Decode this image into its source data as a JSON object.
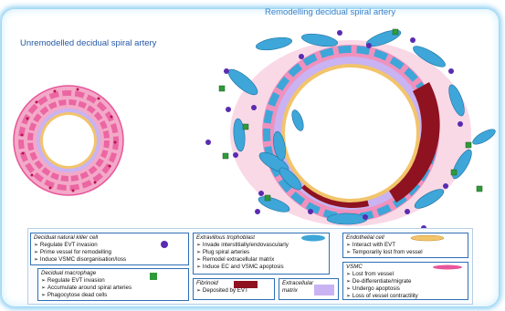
{
  "titles": {
    "remodelling": "Remodelling decidual spiral artery",
    "unremodelled": "Unremodelled decidual spiral artery"
  },
  "legend": {
    "dnk": {
      "heading": "Decidual natural killer cell",
      "items": [
        "Regulate EVT invasion",
        "Prime vessel for remodelling",
        "Induce VSMC disorganisation/loss"
      ]
    },
    "macrophage": {
      "heading": "Decidual macrophage",
      "items": [
        "Regulate EVT invasion",
        "Accumulate around spiral arteries",
        "Phagocytose dead cells"
      ]
    },
    "evt": {
      "heading": "Extravillous trophoblast",
      "items": [
        "Invade interstitially/endovascularly",
        "Plug spiral arteries",
        "Remodel extracellular matrix",
        "Induce EC and VSMC apoptosis"
      ]
    },
    "fibrinoid": {
      "heading": "Fibrinoid",
      "items": [
        "Deposited by EVT"
      ]
    },
    "ecm": {
      "heading": "Extracellular matrix"
    },
    "endothelial": {
      "heading": "Endothelial cell",
      "items": [
        "Interact with EVT",
        "Temporarily lost from vessel"
      ]
    },
    "vsmc": {
      "heading": "VSMC",
      "items": [
        "Lost from vessel",
        "De-differentiate/migrate",
        "Undergo apoptosis",
        "Loss of vessel contractility"
      ]
    }
  },
  "colors": {
    "vsmc": "#e8559a",
    "ecm": "#c9b3f2",
    "endothelium": "#f2c46b",
    "evt": "#3ea6d8",
    "fibrinoid": "#8e1220",
    "dnk": "#5a2bb0",
    "macrophage": "#2f9a3a",
    "frame_glow": "#8fd0f2"
  }
}
